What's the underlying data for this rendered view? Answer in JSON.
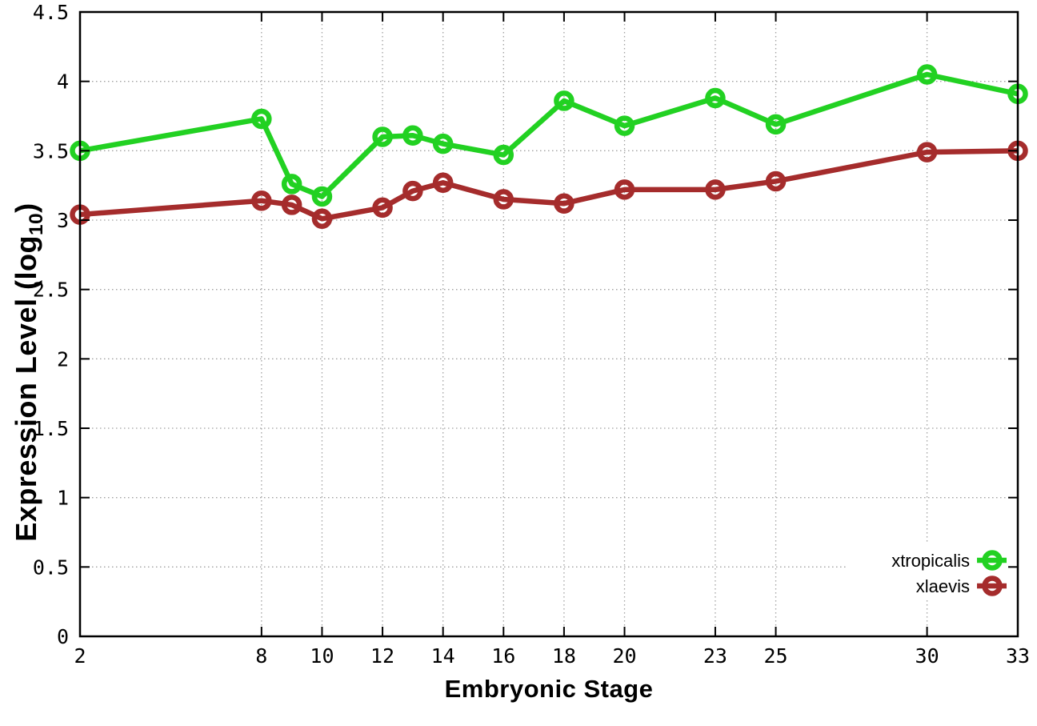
{
  "chart_data": {
    "type": "line",
    "title": "",
    "xlabel": "Embryonic Stage",
    "ylabel": "Expression Level (log10)",
    "ylabel_parts": {
      "prefix": "Expression Level (log",
      "sub": "10",
      "suffix": ")"
    },
    "xlim": [
      2,
      33
    ],
    "ylim": [
      0,
      4.5
    ],
    "x_tick_values": [
      2,
      8,
      10,
      12,
      14,
      16,
      18,
      20,
      23,
      25,
      30,
      33
    ],
    "x_tick_labels": [
      "2",
      "8",
      "10",
      "12",
      "14",
      "16",
      "18",
      "20",
      "23",
      "25",
      "30",
      "33"
    ],
    "y_tick_values": [
      0,
      0.5,
      1,
      1.5,
      2,
      2.5,
      3,
      3.5,
      4,
      4.5
    ],
    "y_tick_labels": [
      "0",
      "0.5",
      "1",
      "1.5",
      "2",
      "2.5",
      "3",
      "3.5",
      "4",
      "4.5"
    ],
    "grid": true,
    "legend_position": "inside-bottom-right",
    "x": [
      2,
      8,
      9,
      10,
      12,
      13,
      14,
      16,
      18,
      20,
      23,
      25,
      30,
      33
    ],
    "series": [
      {
        "name": "xtropicalis",
        "color": "#22d122",
        "values": [
          3.5,
          3.73,
          3.26,
          3.17,
          3.6,
          3.61,
          3.55,
          3.47,
          3.86,
          3.68,
          3.88,
          3.69,
          4.05,
          3.91
        ]
      },
      {
        "name": "xlaevis",
        "color": "#a52c2c",
        "values": [
          3.04,
          3.14,
          3.11,
          3.01,
          3.09,
          3.21,
          3.27,
          3.15,
          3.12,
          3.22,
          3.22,
          3.28,
          3.49,
          3.5
        ]
      }
    ],
    "colors": {
      "border": "#000000",
      "grid": "#a0a0a0",
      "background": "#ffffff",
      "tick_text": "#000000"
    }
  }
}
